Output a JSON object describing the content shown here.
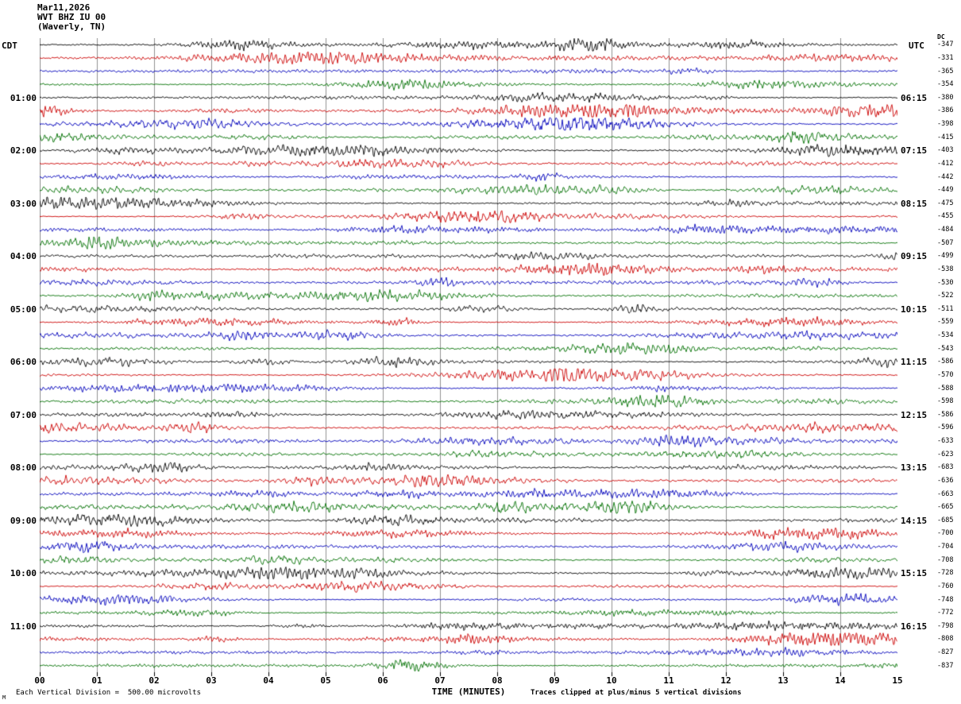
{
  "header": {
    "date": "Mar11,2026",
    "station": "WVT BHZ IU 00",
    "location": "(Waverly, TN)"
  },
  "left_axis": {
    "zone_label": "CDT",
    "hour_labels": [
      "01:00",
      "02:00",
      "03:00",
      "04:00",
      "05:00",
      "06:00",
      "07:00",
      "08:00",
      "09:00",
      "10:00",
      "11:00"
    ]
  },
  "right_axis": {
    "zone_label": "UTC",
    "hour_labels": [
      "06:15",
      "07:15",
      "08:15",
      "09:15",
      "10:15",
      "11:15",
      "12:15",
      "13:15",
      "14:15",
      "15:15",
      "16:15"
    ],
    "dc_header": "DC"
  },
  "x_axis": {
    "tick_labels": [
      "00",
      "01",
      "02",
      "03",
      "04",
      "05",
      "06",
      "07",
      "08",
      "09",
      "10",
      "11",
      "12",
      "13",
      "14",
      "15"
    ],
    "title": "TIME (MINUTES)"
  },
  "footer": {
    "left_note": "Each Vertical Division =  500.00 microvolts",
    "right_note": "Traces clipped at plus/minus 5 vertical divisions",
    "corner_mark": "M"
  },
  "chart_data": {
    "type": "line",
    "subtype": "helicorder-seismogram",
    "title": "WVT BHZ IU 00 (Waverly, TN) Mar11,2026",
    "rows": 48,
    "minutes_per_row": 15,
    "x_range_minutes": [
      0,
      15
    ],
    "grid": "vertical line each minute",
    "row_color_cycle": [
      "black",
      "red",
      "blue",
      "green"
    ],
    "colors": {
      "black": "#000000",
      "red": "#cc0000",
      "blue": "#0000bb",
      "green": "#007000",
      "grid": "#909090"
    },
    "left_time_zone": "CDT",
    "right_time_zone": "UTC",
    "dc_offsets": [
      "-347",
      "-331",
      "-365",
      "-354",
      "-380",
      "-386",
      "-398",
      "-415",
      "-403",
      "-412",
      "-442",
      "-449",
      "-475",
      "-455",
      "-484",
      "-507",
      "-499",
      "-538",
      "-530",
      "-522",
      "-511",
      "-559",
      "-534",
      "-543",
      "-586",
      "-570",
      "-588",
      "-598",
      "-586",
      "-596",
      "-633",
      "-623",
      "-683",
      "-636",
      "-663",
      "-665",
      "-685",
      "-700",
      "-704",
      "-708",
      "-728",
      "-760",
      "-748",
      "-772",
      "-798",
      "-808",
      "-827",
      "-837"
    ],
    "scale_note": "Each Vertical Division =  500.00 microvolts",
    "clip_note": "Traces clipped at plus/minus 5 vertical divisions",
    "waveform": "continuous ambient seismic noise traces with intermittent higher-amplitude bursts; exact sample values not resolvable"
  }
}
